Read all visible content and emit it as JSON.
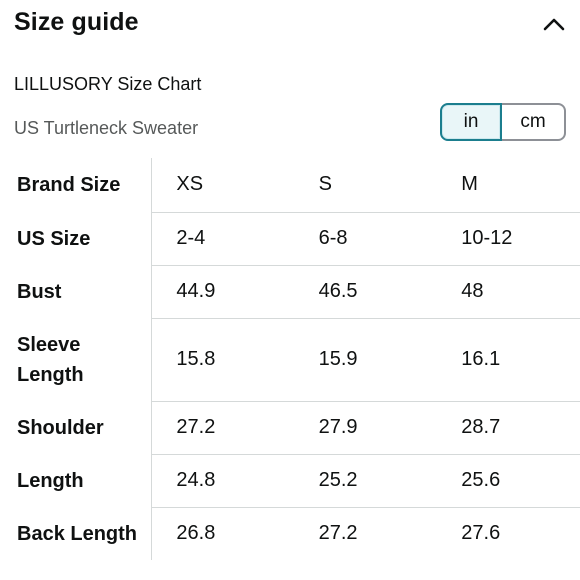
{
  "header": {
    "title": "Size guide",
    "collapse_icon": "chevron-up-icon"
  },
  "chart": {
    "brand": "LILLUSORY Size Chart",
    "product": "US Turtleneck Sweater"
  },
  "unit_toggle": {
    "options": [
      "in",
      "cm"
    ],
    "selected": "in"
  },
  "table": {
    "rows": [
      {
        "label": "Brand Size",
        "values": [
          "XS",
          "S",
          "M"
        ]
      },
      {
        "label": "US Size",
        "values": [
          "2-4",
          "6-8",
          "10-12"
        ]
      },
      {
        "label": "Bust",
        "values": [
          "44.9",
          "46.5",
          "48"
        ]
      },
      {
        "label": "Sleeve Length",
        "values": [
          "15.8",
          "15.9",
          "16.1"
        ]
      },
      {
        "label": "Shoulder",
        "values": [
          "27.2",
          "27.9",
          "28.7"
        ]
      },
      {
        "label": "Length",
        "values": [
          "24.8",
          "25.2",
          "25.6"
        ]
      },
      {
        "label": "Back Length",
        "values": [
          "26.8",
          "27.2",
          "27.6"
        ]
      }
    ]
  }
}
